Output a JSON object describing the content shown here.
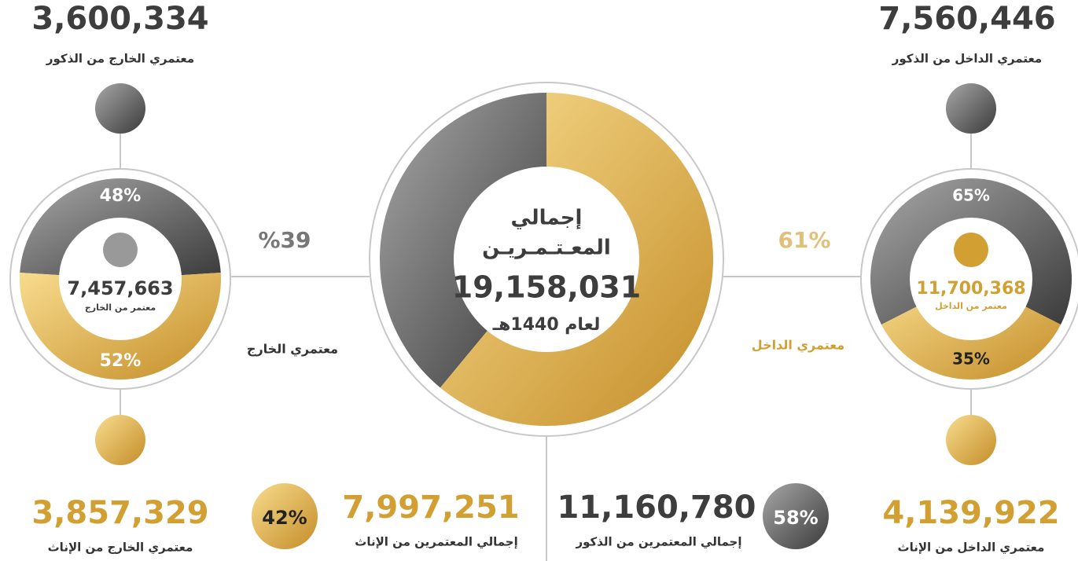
{
  "center": {
    "title_line1": "إجمالي",
    "title_line2": "المعـتـمـريـن",
    "total": "19,158,031",
    "year": "لعام 1440هـ"
  },
  "foreign": {
    "male_count": "3,600,334",
    "male_caption": "معتمري الخارج من الذكور",
    "male_pct": {
      "value": 48,
      "label": "48%"
    },
    "female_pct": {
      "value": 52,
      "label": "52%"
    },
    "total": "7,457,663",
    "total_caption": "معتمر من الخارج",
    "share": {
      "value": 39,
      "label": "%39"
    },
    "side_label": "معتمري الخارج",
    "female_count": "3,857,329",
    "female_caption": "معتمري الخارج من الإناث"
  },
  "domestic": {
    "male_count": "7,560,446",
    "male_caption": "معتمري الداخل من الذكور",
    "male_pct": {
      "value": 65,
      "label": "65%"
    },
    "female_pct": {
      "value": 35,
      "label": "35%"
    },
    "total": "11,700,368",
    "total_caption": "معتمر من الداخل",
    "share": {
      "value": 61,
      "label": "61%"
    },
    "side_label": "معتمري الداخل",
    "female_count": "4,139,922",
    "female_caption": "معتمري الداخل من الإناث"
  },
  "totals": {
    "female_pct": {
      "value": 42,
      "label": "42%"
    },
    "female_count": "7,997,251",
    "female_caption": "إجمالي المعتمرين من الإناث",
    "male_pct": {
      "value": 58,
      "label": "58%"
    },
    "male_count": "11,160,780",
    "male_caption": "إجمالي المعتمرين من الذكور"
  }
}
